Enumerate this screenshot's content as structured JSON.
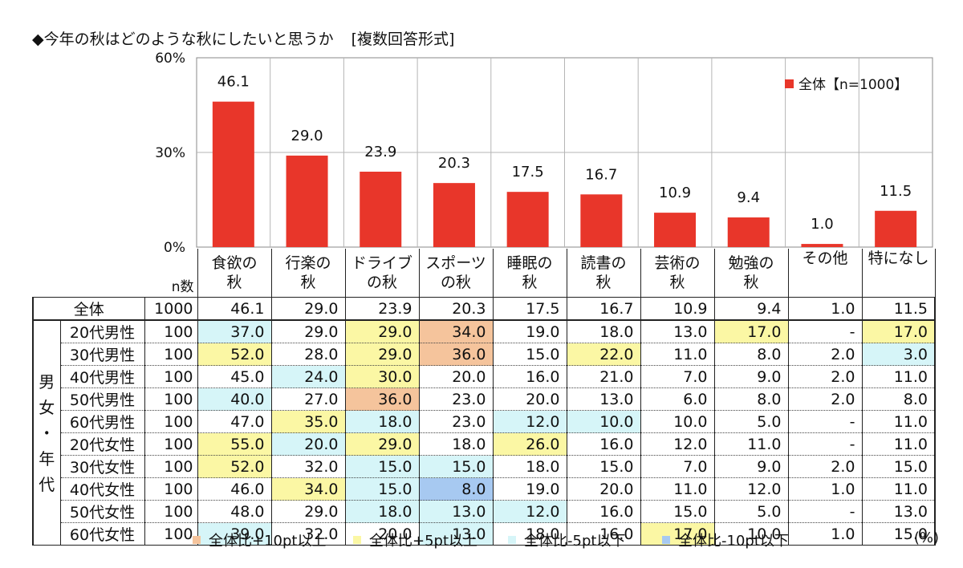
{
  "title": "◆今年の秋はどのような秋にしたいと思うか",
  "question_type": "[複数回答形式]",
  "chart_data": {
    "type": "bar",
    "categories": [
      "食欲の秋",
      "行楽の秋",
      "ドライブの秋",
      "スポーツの秋",
      "睡眠の秋",
      "読書の秋",
      "芸術の秋",
      "勉強の秋",
      "その他",
      "特になし"
    ],
    "series": [
      {
        "name": "全体【n=1000】",
        "values": [
          46.1,
          29.0,
          23.9,
          20.3,
          17.5,
          16.7,
          10.9,
          9.4,
          1.0,
          11.5
        ]
      }
    ],
    "value_labels": [
      "46.1",
      "29.0",
      "23.9",
      "20.3",
      "17.5",
      "16.7",
      "10.9",
      "9.4",
      "1.0",
      "11.5"
    ],
    "ylim": [
      0,
      60
    ],
    "yticks": [
      {
        "value": 0,
        "label": "0%"
      },
      {
        "value": 30,
        "label": "30%"
      },
      {
        "value": 60,
        "label": "60%"
      }
    ],
    "grid": true,
    "legend_position": "top-right",
    "bar_color": "#e8362a"
  },
  "table": {
    "n_header": "n数",
    "column_headers": [
      [
        "食欲の",
        "秋"
      ],
      [
        "行楽の",
        "秋"
      ],
      [
        "ドライブ",
        "の秋"
      ],
      [
        "スポーツ",
        "の秋"
      ],
      [
        "睡眠の",
        "秋"
      ],
      [
        "読書の",
        "秋"
      ],
      [
        "芸術の",
        "秋"
      ],
      [
        "勉強の",
        "秋"
      ],
      [
        "その他",
        ""
      ],
      [
        "特になし",
        ""
      ]
    ],
    "group_label": [
      "男",
      "女",
      "・",
      "年",
      "代"
    ],
    "total_row": {
      "label": "全体",
      "n": "1000",
      "values": [
        "46.1",
        "29.0",
        "23.9",
        "20.3",
        "17.5",
        "16.7",
        "10.9",
        "9.4",
        "1.0",
        "11.5"
      ]
    },
    "rows": [
      {
        "label": "20代男性",
        "n": "100",
        "values": [
          "37.0",
          "29.0",
          "29.0",
          "34.0",
          "19.0",
          "18.0",
          "13.0",
          "17.0",
          "-",
          "17.0"
        ],
        "hl": [
          "lc",
          "",
          "y",
          "o",
          "",
          "",
          "",
          "y",
          "",
          "y"
        ]
      },
      {
        "label": "30代男性",
        "n": "100",
        "values": [
          "52.0",
          "28.0",
          "29.0",
          "36.0",
          "15.0",
          "22.0",
          "11.0",
          "8.0",
          "2.0",
          "3.0"
        ],
        "hl": [
          "y",
          "",
          "y",
          "o",
          "",
          "y",
          "",
          "",
          "",
          "lc"
        ]
      },
      {
        "label": "40代男性",
        "n": "100",
        "values": [
          "45.0",
          "24.0",
          "30.0",
          "20.0",
          "16.0",
          "21.0",
          "7.0",
          "9.0",
          "2.0",
          "11.0"
        ],
        "hl": [
          "",
          "lc",
          "y",
          "",
          "",
          "",
          "",
          "",
          "",
          ""
        ]
      },
      {
        "label": "50代男性",
        "n": "100",
        "values": [
          "40.0",
          "27.0",
          "36.0",
          "23.0",
          "20.0",
          "13.0",
          "6.0",
          "8.0",
          "2.0",
          "8.0"
        ],
        "hl": [
          "lc",
          "",
          "o",
          "",
          "",
          "",
          "",
          "",
          "",
          ""
        ]
      },
      {
        "label": "60代男性",
        "n": "100",
        "values": [
          "47.0",
          "35.0",
          "18.0",
          "23.0",
          "12.0",
          "10.0",
          "10.0",
          "5.0",
          "-",
          "11.0"
        ],
        "hl": [
          "",
          "y",
          "lc",
          "",
          "lc",
          "lc",
          "",
          "",
          "",
          ""
        ]
      },
      {
        "label": "20代女性",
        "n": "100",
        "values": [
          "55.0",
          "20.0",
          "29.0",
          "18.0",
          "26.0",
          "16.0",
          "12.0",
          "11.0",
          "-",
          "11.0"
        ],
        "hl": [
          "y",
          "lc",
          "y",
          "",
          "y",
          "",
          "",
          "",
          "",
          ""
        ]
      },
      {
        "label": "30代女性",
        "n": "100",
        "values": [
          "52.0",
          "32.0",
          "15.0",
          "15.0",
          "18.0",
          "15.0",
          "7.0",
          "9.0",
          "2.0",
          "15.0"
        ],
        "hl": [
          "y",
          "",
          "lc",
          "lc",
          "",
          "",
          "",
          "",
          "",
          ""
        ]
      },
      {
        "label": "40代女性",
        "n": "100",
        "values": [
          "46.0",
          "34.0",
          "15.0",
          "8.0",
          "19.0",
          "20.0",
          "11.0",
          "12.0",
          "1.0",
          "11.0"
        ],
        "hl": [
          "",
          "y",
          "lc",
          "b",
          "",
          "",
          "",
          "",
          "",
          ""
        ]
      },
      {
        "label": "50代女性",
        "n": "100",
        "values": [
          "48.0",
          "29.0",
          "18.0",
          "13.0",
          "12.0",
          "16.0",
          "15.0",
          "5.0",
          "-",
          "13.0"
        ],
        "hl": [
          "",
          "",
          "lc",
          "lc",
          "lc",
          "",
          "",
          "",
          "",
          ""
        ]
      },
      {
        "label": "60代女性",
        "n": "100",
        "values": [
          "39.0",
          "32.0",
          "20.0",
          "13.0",
          "18.0",
          "16.0",
          "17.0",
          "10.0",
          "1.0",
          "15.0"
        ],
        "hl": [
          "lc",
          "",
          "",
          "lc",
          "",
          "",
          "y",
          "",
          "",
          ""
        ]
      }
    ]
  },
  "highlight_colors": {
    "o": "#f5c49c",
    "y": "#fbf7a4",
    "lc": "#d6f5f8",
    "b": "#a7c9f1"
  },
  "legend": [
    {
      "key": "o",
      "label": "全体比+10pt以上"
    },
    {
      "key": "y",
      "label": "全体比+5pt以上"
    },
    {
      "key": "lc",
      "label": "全体比-5pt以下"
    },
    {
      "key": "b",
      "label": "全体比-10pt以下"
    }
  ],
  "unit_label": "(%)"
}
